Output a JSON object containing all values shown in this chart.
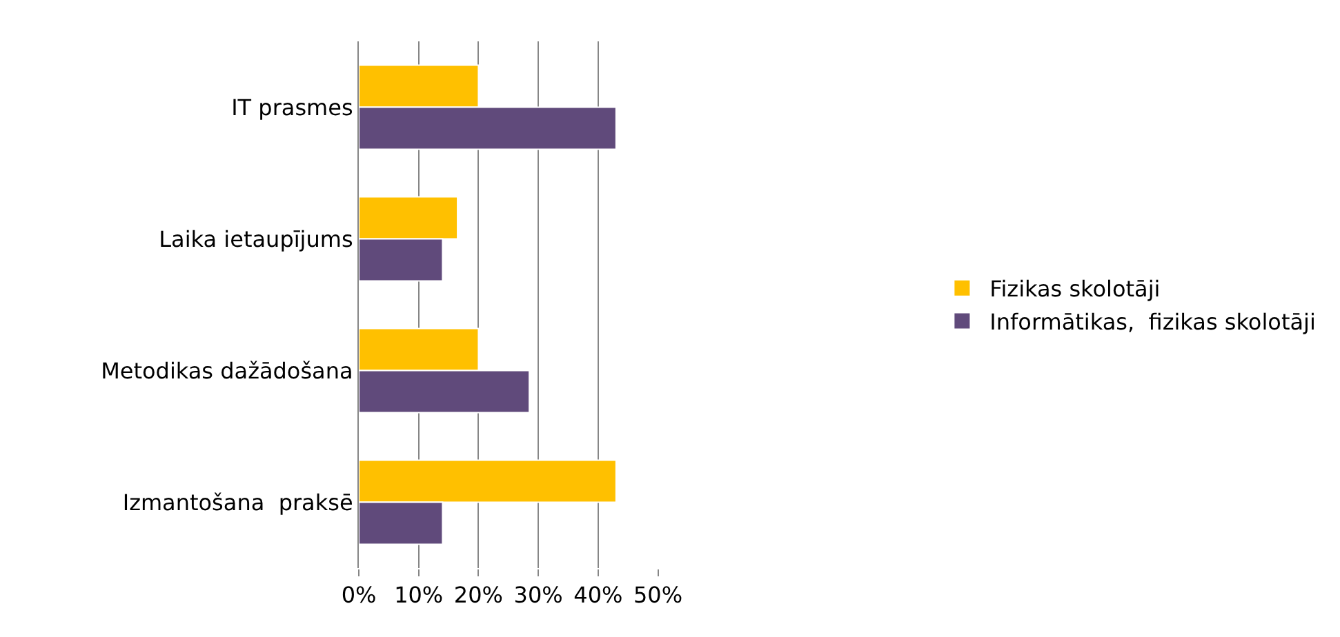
{
  "chart_data": {
    "type": "bar",
    "orientation": "horizontal",
    "categories": [
      "IT prasmes",
      "Laika ietaupījums",
      "Metodikas dažādošana",
      "Izmantošana  praksē"
    ],
    "series": [
      {
        "name": "Fizikas skolotāji",
        "color": "#ffc000",
        "values": [
          20,
          16.5,
          20,
          43
        ]
      },
      {
        "name": "Informātikas,  fizikas skolotāji",
        "color": "#604a7b",
        "values": [
          43,
          14,
          28.5,
          14
        ]
      }
    ],
    "xlim": [
      0,
      50
    ],
    "xticks": [
      {
        "value": 0,
        "label": "0%"
      },
      {
        "value": 10,
        "label": "10%"
      },
      {
        "value": 20,
        "label": "20%"
      },
      {
        "value": 30,
        "label": "30%"
      },
      {
        "value": 40,
        "label": "40%"
      },
      {
        "value": 50,
        "label": "50%"
      }
    ],
    "grid": "x",
    "legend": "right"
  }
}
